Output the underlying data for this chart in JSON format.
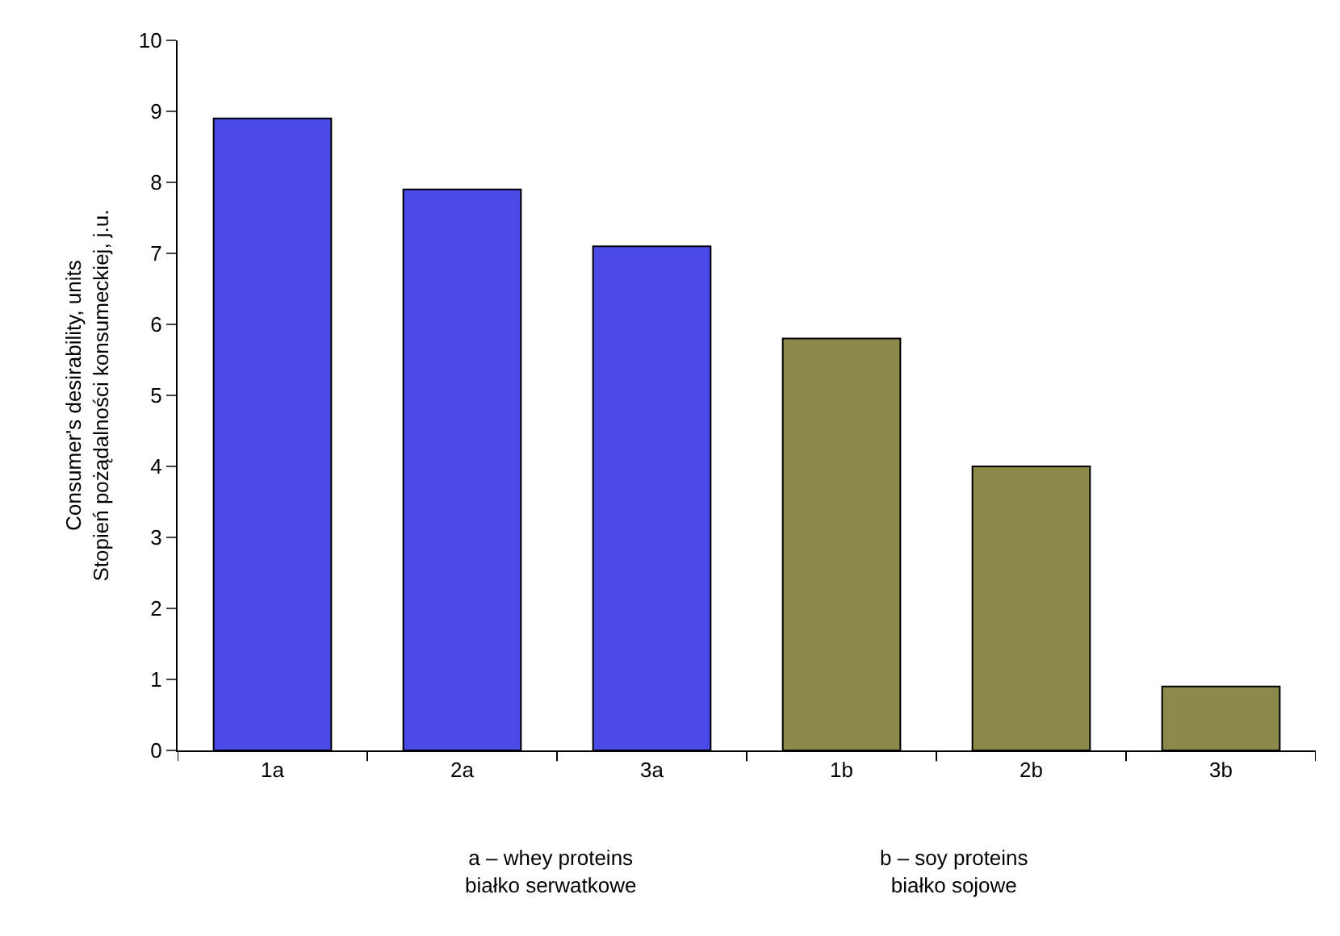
{
  "chart_data": {
    "type": "bar",
    "categories": [
      "1a",
      "2a",
      "3a",
      "1b",
      "2b",
      "3b"
    ],
    "values": [
      8.9,
      7.9,
      7.1,
      5.8,
      4.0,
      0.9
    ],
    "colors": [
      "#4a4ae8",
      "#4a4ae8",
      "#4a4ae8",
      "#8c8a4a",
      "#8c8a4a",
      "#8c8a4a"
    ],
    "ylabel": "Consumer's desirability, units\nStopień pożądalności konsumeckiej, j.u.",
    "ylim": [
      0,
      10
    ],
    "yticks": [
      0,
      1,
      2,
      3,
      4,
      5,
      6,
      7,
      8,
      9,
      10
    ],
    "legend": false,
    "annotations": [
      "a – whey proteins\nbiałko serwatkowe",
      "b – soy proteins\nbiałko sojowe"
    ]
  }
}
